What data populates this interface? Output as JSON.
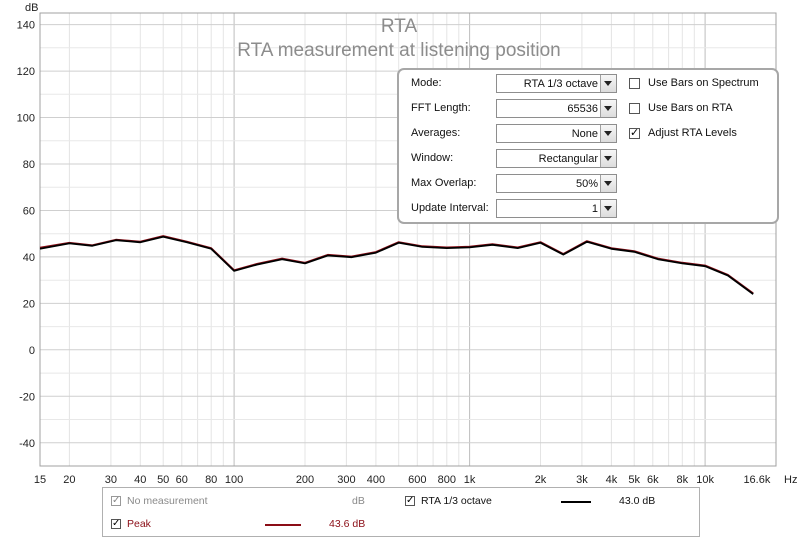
{
  "chart_data": {
    "type": "line",
    "title": "RTA",
    "subtitle": "RTA measurement at listening position",
    "ylabel": "dB",
    "xunit": "Hz",
    "xscale": "log",
    "xlim": [
      15,
      20000
    ],
    "ylim": [
      -50,
      145
    ],
    "grid": true,
    "yticks": [
      {
        "v": 140,
        "label": "140"
      },
      {
        "v": 120,
        "label": "120"
      },
      {
        "v": 100,
        "label": "100"
      },
      {
        "v": 80,
        "label": "80"
      },
      {
        "v": 60,
        "label": "60"
      },
      {
        "v": 40,
        "label": "40"
      },
      {
        "v": 20,
        "label": "20"
      },
      {
        "v": 0,
        "label": "0"
      },
      {
        "v": -20,
        "label": "-20"
      },
      {
        "v": -40,
        "label": "-40"
      }
    ],
    "xticks": [
      {
        "v": 15,
        "label": "15"
      },
      {
        "v": 20,
        "label": "20"
      },
      {
        "v": 30,
        "label": "30"
      },
      {
        "v": 40,
        "label": "40"
      },
      {
        "v": 50,
        "label": "50"
      },
      {
        "v": 60,
        "label": "60"
      },
      {
        "v": 80,
        "label": "80"
      },
      {
        "v": 100,
        "label": "100"
      },
      {
        "v": 200,
        "label": "200"
      },
      {
        "v": 300,
        "label": "300"
      },
      {
        "v": 400,
        "label": "400"
      },
      {
        "v": 600,
        "label": "600"
      },
      {
        "v": 800,
        "label": "800"
      },
      {
        "v": 1000,
        "label": "1k"
      },
      {
        "v": 2000,
        "label": "2k"
      },
      {
        "v": 3000,
        "label": "3k"
      },
      {
        "v": 4000,
        "label": "4k"
      },
      {
        "v": 5000,
        "label": "5k"
      },
      {
        "v": 6000,
        "label": "6k"
      },
      {
        "v": 8000,
        "label": "8k"
      },
      {
        "v": 10000,
        "label": "10k"
      },
      {
        "v": 16600,
        "label": "16.6k"
      }
    ],
    "x": [
      15,
      20,
      25,
      31.5,
      40,
      50,
      63,
      80,
      100,
      125,
      160,
      200,
      250,
      315,
      400,
      500,
      630,
      800,
      1000,
      1250,
      1600,
      2000,
      2500,
      3150,
      4000,
      5000,
      6300,
      8000,
      10000,
      12500,
      16000
    ],
    "series": [
      {
        "name": "RTA 1/3 octave",
        "color": "#000000",
        "values": [
          43.5,
          45.8,
          44.8,
          47.2,
          46.3,
          48.7,
          46.3,
          43.5,
          34.0,
          36.7,
          39.0,
          37.2,
          40.6,
          39.9,
          41.8,
          46.1,
          44.3,
          43.8,
          44.1,
          45.2,
          43.8,
          46.1,
          41.0,
          46.5,
          43.5,
          42.2,
          39.0,
          37.2,
          36.0,
          32.0,
          24.0
        ]
      },
      {
        "name": "Peak",
        "color": "#8b0d16",
        "values": [
          44.0,
          46.1,
          45.0,
          47.4,
          46.6,
          49.0,
          46.6,
          43.8,
          34.3,
          37.0,
          39.3,
          37.5,
          40.9,
          40.2,
          42.1,
          46.4,
          44.6,
          44.1,
          44.4,
          45.5,
          44.1,
          46.4,
          41.3,
          46.8,
          43.8,
          42.5,
          39.3,
          37.5,
          36.3,
          32.3,
          24.3
        ]
      }
    ]
  },
  "controls": {
    "rows": [
      {
        "label": "Mode:",
        "value": "RTA 1/3 octave"
      },
      {
        "label": "FFT Length:",
        "value": "65536"
      },
      {
        "label": "Averages:",
        "value": "None"
      },
      {
        "label": "Window:",
        "value": "Rectangular"
      },
      {
        "label": "Max Overlap:",
        "value": "50%"
      },
      {
        "label": "Update Interval:",
        "value": "1"
      }
    ],
    "checks": [
      {
        "label": "Use Bars on Spectrum",
        "checked": false
      },
      {
        "label": "Use Bars on RTA",
        "checked": false
      },
      {
        "label": "Adjust RTA Levels",
        "checked": true
      }
    ]
  },
  "legend": {
    "items": [
      {
        "label": "No measurement",
        "value": "dB",
        "checked": true,
        "disabled": true,
        "color": "#808080"
      },
      {
        "label": "RTA 1/3 octave",
        "value": "43.0 dB",
        "checked": true,
        "disabled": false,
        "color": "#000000"
      },
      {
        "label": "Peak",
        "value": "43.6 dB",
        "checked": true,
        "disabled": false,
        "color": "#8b0d16"
      }
    ]
  },
  "check_glyph": "✓"
}
